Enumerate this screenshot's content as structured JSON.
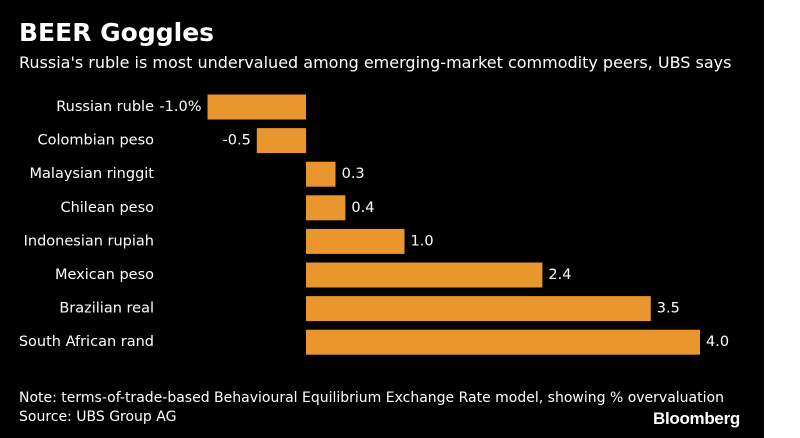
{
  "header": {
    "title": "BEER Goggles",
    "subtitle": "Russia's ruble is most undervalued among emerging-market commodity peers, UBS says"
  },
  "footer": {
    "note": "Note: terms-of-trade-based Behavioural Equilibrium Exchange Rate model, showing % overvaluation",
    "source": "Source: UBS Group AG",
    "brand": "Bloomberg"
  },
  "colors": {
    "background": "#000000",
    "bar": "#E8962D",
    "text": "#FFFFFF"
  },
  "chart_data": {
    "type": "bar",
    "orientation": "horizontal",
    "title": "BEER Goggles",
    "subtitle": "Russia's ruble is most undervalued among emerging-market commodity peers, UBS says",
    "xlabel": "",
    "ylabel": "",
    "grid": false,
    "legend": "none",
    "xlim": [
      -1.0,
      4.0
    ],
    "categories": [
      "Russian ruble",
      "Colombian peso",
      "Malaysian ringgit",
      "Chilean peso",
      "Indonesian rupiah",
      "Mexican peso",
      "Brazilian real",
      "South African rand"
    ],
    "values": [
      -1.0,
      -0.5,
      0.3,
      0.4,
      1.0,
      2.4,
      3.5,
      4.0
    ],
    "data_labels": [
      "-1.0%",
      "-0.5",
      "0.3",
      "0.4",
      "1.0",
      "2.4",
      "3.5",
      "4.0"
    ]
  }
}
